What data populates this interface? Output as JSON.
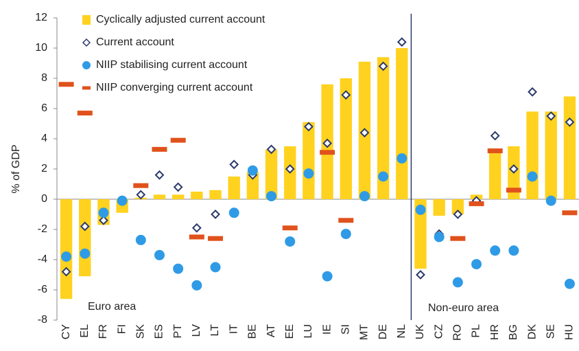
{
  "chart_data": {
    "type": "bar",
    "y_label": "% of GDP",
    "annotations": [
      "Euro area",
      "Non-euro area"
    ],
    "categories": [
      "CY",
      "EL",
      "FR",
      "FI",
      "SK",
      "ES",
      "PT",
      "LV",
      "LT",
      "IT",
      "BE",
      "AT",
      "EE",
      "LU",
      "IE",
      "SI",
      "MT",
      "DE",
      "NL",
      "UK",
      "CZ",
      "RO",
      "PL",
      "HR",
      "BG",
      "DK",
      "SE",
      "HU"
    ],
    "ylim": [
      -8,
      12
    ],
    "yticks": [
      -8,
      -6,
      -4,
      -2,
      0,
      2,
      4,
      6,
      8,
      10,
      12
    ],
    "series": [
      {
        "name": "Cyclically adjusted current account",
        "marker": "bar",
        "color": "#ffd21f",
        "values": [
          -6.6,
          -5.1,
          -1.7,
          -0.9,
          0.1,
          0.3,
          0.3,
          0.5,
          0.6,
          1.5,
          1.8,
          3.3,
          3.5,
          5.1,
          7.6,
          8.0,
          9.1,
          9.4,
          10.0,
          -4.6,
          -1.1,
          -1.0,
          0.3,
          3.2,
          3.5,
          5.8,
          5.8,
          6.8
        ]
      },
      {
        "name": "Current account",
        "marker": "diamond",
        "color": "#2b3a6b",
        "values": [
          -4.8,
          -1.8,
          -1.4,
          -0.1,
          0.3,
          1.6,
          0.8,
          -1.9,
          -1.0,
          2.3,
          1.6,
          3.3,
          2.0,
          4.8,
          3.7,
          6.9,
          4.4,
          8.8,
          10.4,
          -5.0,
          -2.3,
          -1.0,
          -0.1,
          4.2,
          2.0,
          7.1,
          5.5,
          5.1
        ]
      },
      {
        "name": "NIIP stabilising current account",
        "marker": "circle",
        "color": "#2f9be6",
        "values": [
          -3.8,
          -3.6,
          -0.9,
          -0.1,
          -2.7,
          -3.7,
          -4.6,
          -5.7,
          -4.5,
          -0.9,
          1.9,
          0.2,
          -2.8,
          1.7,
          -5.1,
          -2.3,
          0.2,
          1.5,
          2.7,
          -0.7,
          -2.5,
          -5.5,
          -4.3,
          -3.4,
          -3.4,
          1.5,
          -0.1,
          -5.6
        ]
      },
      {
        "name": "NIIP converging current account",
        "marker": "dash",
        "color": "#e0521c",
        "values": [
          7.6,
          5.7,
          null,
          null,
          0.9,
          3.3,
          3.9,
          -2.5,
          -2.6,
          null,
          null,
          null,
          -1.9,
          null,
          3.1,
          -1.4,
          null,
          null,
          null,
          null,
          null,
          -2.6,
          -0.3,
          3.2,
          0.6,
          null,
          null,
          -0.9
        ]
      }
    ]
  }
}
